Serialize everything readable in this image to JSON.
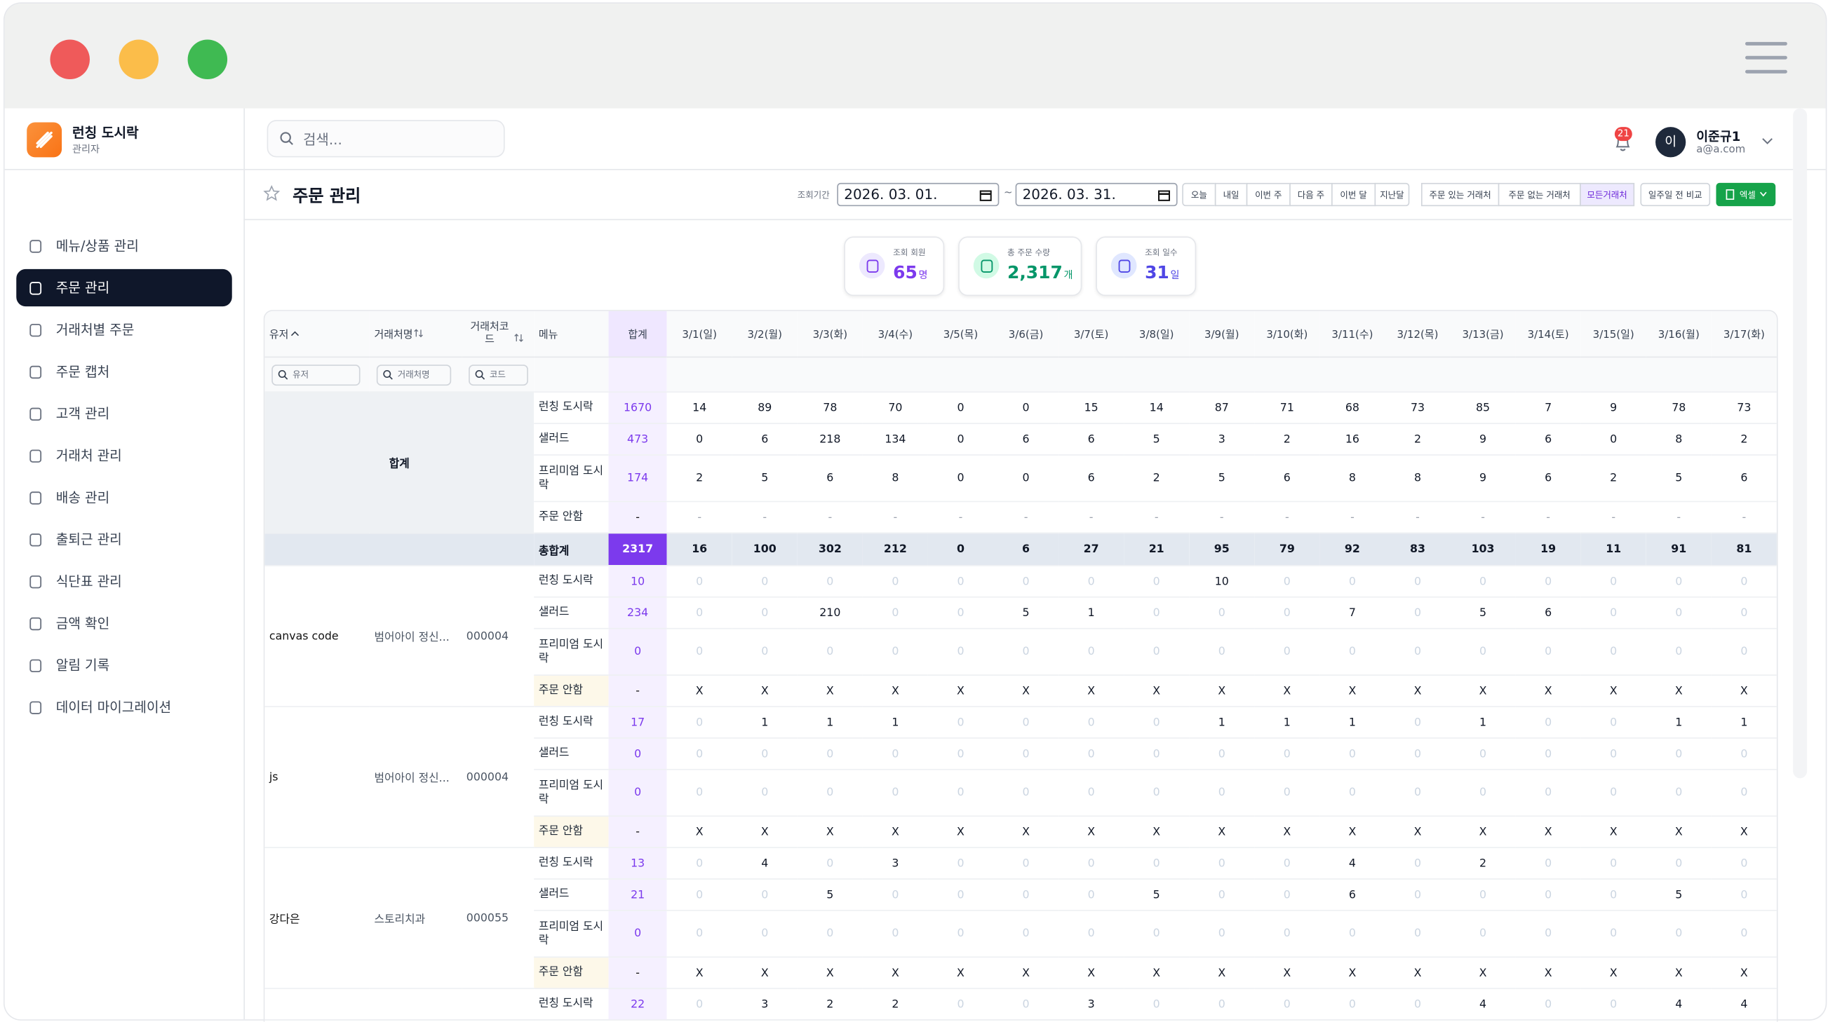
{
  "sidebar": {
    "brand": {
      "name": "런칭 도시락",
      "role": "관리자"
    },
    "menu": [
      {
        "label": "메뉴/상품 관리"
      },
      {
        "label": "주문 관리",
        "active": true
      },
      {
        "label": "거래처별 주문"
      },
      {
        "label": "주문 캡처"
      },
      {
        "label": "고객 관리"
      },
      {
        "label": "거래처 관리"
      },
      {
        "label": "배송 관리"
      },
      {
        "label": "출퇴근 관리"
      },
      {
        "label": "식단표 관리"
      },
      {
        "label": "금액 확인"
      },
      {
        "label": "알림 기록"
      },
      {
        "label": "데이터 마이그레이션"
      }
    ]
  },
  "header": {
    "search_placeholder": "검색...",
    "notification_count": 21,
    "user": {
      "initial": "이",
      "name": "이준규1",
      "email": "a@a.com"
    }
  },
  "toolbar": {
    "title": "주문 관리",
    "period_label": "조회기간",
    "start_date": "2026. 03. 01.",
    "separator": "~",
    "end_date": "2026. 03. 31.",
    "quick_ranges": [
      "오늘",
      "내일",
      "이번 주",
      "다음 주",
      "이번 달",
      "지난달"
    ],
    "client_filters": [
      {
        "label": "주문 있는 거래처"
      },
      {
        "label": "주문 없는 거래처"
      },
      {
        "label": "모든거래처",
        "active": true
      }
    ],
    "compare_button": "일주일 전 비교",
    "excel_button": "엑셀"
  },
  "stats": [
    {
      "label": "조회 회원",
      "value": "65",
      "unit": "명"
    },
    {
      "label": "총 주문 수량",
      "value": "2,317",
      "unit": "개"
    },
    {
      "label": "조회 일수",
      "value": "31",
      "unit": "일"
    }
  ],
  "table": {
    "columns": [
      "유저",
      "거래처명",
      "거래처코드",
      "메뉴",
      "합계",
      "3/1(일)",
      "3/2(월)",
      "3/3(화)",
      "3/4(수)",
      "3/5(목)",
      "3/6(금)",
      "3/7(토)",
      "3/8(일)",
      "3/9(월)",
      "3/10(화)",
      "3/11(수)",
      "3/12(목)",
      "3/13(금)",
      "3/14(토)",
      "3/15(일)",
      "3/16(월)",
      "3/17(화)"
    ],
    "filters": [
      "유저",
      "거래처명",
      "코드"
    ],
    "summary": {
      "label": "합계",
      "rows": [
        {
          "menu": "런칭 도시락",
          "total": 1670,
          "days": [
            14,
            89,
            78,
            70,
            0,
            0,
            15,
            14,
            87,
            71,
            68,
            73,
            85,
            7,
            9,
            78,
            73
          ]
        },
        {
          "menu": "샐러드",
          "total": 473,
          "days": [
            0,
            6,
            218,
            134,
            0,
            6,
            6,
            5,
            3,
            2,
            16,
            2,
            9,
            6,
            0,
            8,
            2
          ]
        },
        {
          "menu": "프리미엄 도시락",
          "total": 174,
          "days": [
            2,
            5,
            6,
            8,
            0,
            0,
            6,
            2,
            5,
            6,
            8,
            8,
            9,
            6,
            2,
            5,
            6
          ]
        },
        {
          "menu": "주문 안함",
          "total": "-",
          "days": [
            "-",
            "-",
            "-",
            "-",
            "-",
            "-",
            "-",
            "-",
            "-",
            "-",
            "-",
            "-",
            "-",
            "-",
            "-",
            "-",
            "-"
          ]
        }
      ]
    },
    "grand_total": {
      "label": "총합계",
      "total": 2317,
      "days": [
        16,
        100,
        302,
        212,
        0,
        6,
        27,
        21,
        95,
        79,
        92,
        83,
        103,
        19,
        11,
        91,
        81
      ]
    },
    "groups": [
      {
        "user": "canvas code",
        "client": "범어아이 정신...",
        "code": "000004",
        "rows": [
          {
            "menu": "런칭 도시락",
            "total": 10,
            "days": [
              0,
              0,
              0,
              0,
              0,
              0,
              0,
              0,
              10,
              0,
              0,
              0,
              0,
              0,
              0,
              0,
              0
            ]
          },
          {
            "menu": "샐러드",
            "total": 234,
            "days": [
              0,
              0,
              210,
              0,
              0,
              5,
              1,
              0,
              0,
              0,
              7,
              0,
              5,
              6,
              0,
              0,
              0
            ]
          },
          {
            "menu": "프리미엄 도시락",
            "total": 0,
            "days": [
              0,
              0,
              0,
              0,
              0,
              0,
              0,
              0,
              0,
              0,
              0,
              0,
              0,
              0,
              0,
              0,
              0
            ]
          },
          {
            "menu": "주문 안함",
            "total": "-",
            "days": [
              "X",
              "X",
              "X",
              "X",
              "X",
              "X",
              "X",
              "X",
              "X",
              "X",
              "X",
              "X",
              "X",
              "X",
              "X",
              "X",
              "X"
            ]
          }
        ]
      },
      {
        "user": "js",
        "client": "범어아이 정신...",
        "code": "000004",
        "rows": [
          {
            "menu": "런칭 도시락",
            "total": 17,
            "days": [
              0,
              1,
              1,
              1,
              0,
              0,
              0,
              0,
              1,
              1,
              1,
              0,
              1,
              0,
              0,
              1,
              1
            ]
          },
          {
            "menu": "샐러드",
            "total": 0,
            "days": [
              0,
              0,
              0,
              0,
              0,
              0,
              0,
              0,
              0,
              0,
              0,
              0,
              0,
              0,
              0,
              0,
              0
            ]
          },
          {
            "menu": "프리미엄 도시락",
            "total": 0,
            "days": [
              0,
              0,
              0,
              0,
              0,
              0,
              0,
              0,
              0,
              0,
              0,
              0,
              0,
              0,
              0,
              0,
              0
            ]
          },
          {
            "menu": "주문 안함",
            "total": "-",
            "days": [
              "X",
              "X",
              "X",
              "X",
              "X",
              "X",
              "X",
              "X",
              "X",
              "X",
              "X",
              "X",
              "X",
              "X",
              "X",
              "X",
              "X"
            ]
          }
        ]
      },
      {
        "user": "강다은",
        "client": "스토리치과",
        "code": "000055",
        "rows": [
          {
            "menu": "런칭 도시락",
            "total": 13,
            "days": [
              0,
              4,
              0,
              3,
              0,
              0,
              0,
              0,
              0,
              0,
              4,
              0,
              2,
              0,
              0,
              0,
              0
            ]
          },
          {
            "menu": "샐러드",
            "total": 21,
            "days": [
              0,
              0,
              5,
              0,
              0,
              0,
              0,
              5,
              0,
              0,
              6,
              0,
              0,
              0,
              0,
              5,
              0
            ]
          },
          {
            "menu": "프리미엄 도시락",
            "total": 0,
            "days": [
              0,
              0,
              0,
              0,
              0,
              0,
              0,
              0,
              0,
              0,
              0,
              0,
              0,
              0,
              0,
              0,
              0
            ]
          },
          {
            "menu": "주문 안함",
            "total": "-",
            "days": [
              "X",
              "X",
              "X",
              "X",
              "X",
              "X",
              "X",
              "X",
              "X",
              "X",
              "X",
              "X",
              "X",
              "X",
              "X",
              "X",
              "X"
            ]
          }
        ]
      },
      {
        "rows": [
          {
            "menu": "런칭 도시락",
            "total": 22,
            "days": [
              0,
              3,
              2,
              2,
              0,
              0,
              3,
              0,
              0,
              0,
              0,
              0,
              4,
              0,
              0,
              4,
              4
            ]
          }
        ]
      }
    ]
  }
}
